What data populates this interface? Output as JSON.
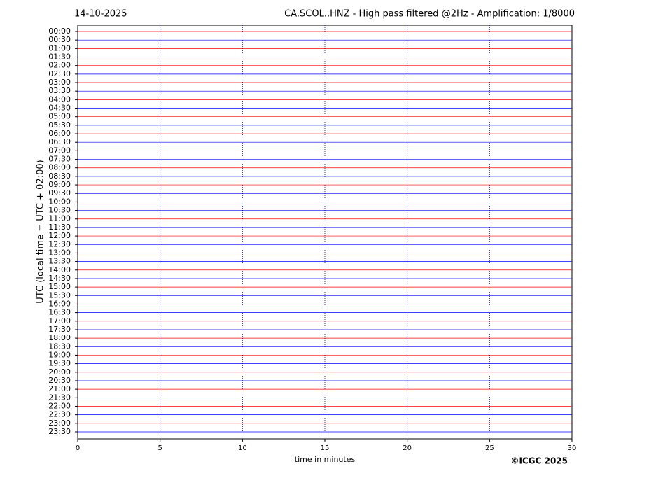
{
  "chart_data": {
    "type": "helicorder",
    "date": "14-10-2025",
    "title": "CA.SCOL..HNZ - High pass filtered @2Hz - Amplification: 1/8000",
    "xlabel": "time in minutes",
    "ylabel": "UTC (local time = UTC + 02:00)",
    "credit": "©ICGC 2025",
    "categories": [
      "00:00",
      "00:30",
      "01:00",
      "01:30",
      "02:00",
      "02:30",
      "03:00",
      "03:30",
      "04:00",
      "04:30",
      "05:00",
      "05:30",
      "06:00",
      "06:30",
      "07:00",
      "07:30",
      "08:00",
      "08:30",
      "09:00",
      "09:30",
      "10:00",
      "10:30",
      "11:00",
      "11:30",
      "12:00",
      "12:30",
      "13:00",
      "13:30",
      "14:00",
      "14:30",
      "15:00",
      "15:30",
      "16:00",
      "16:30",
      "17:00",
      "17:30",
      "18:00",
      "18:30",
      "19:00",
      "19:30",
      "20:00",
      "20:30",
      "21:00",
      "21:30",
      "22:00",
      "22:30",
      "23:00",
      "23:30"
    ],
    "colors": [
      "#ff0000",
      "#0000ff"
    ],
    "xlim": [
      0,
      30
    ],
    "xticks": [
      0,
      5,
      10,
      15,
      20,
      25,
      30
    ],
    "grid": true
  }
}
